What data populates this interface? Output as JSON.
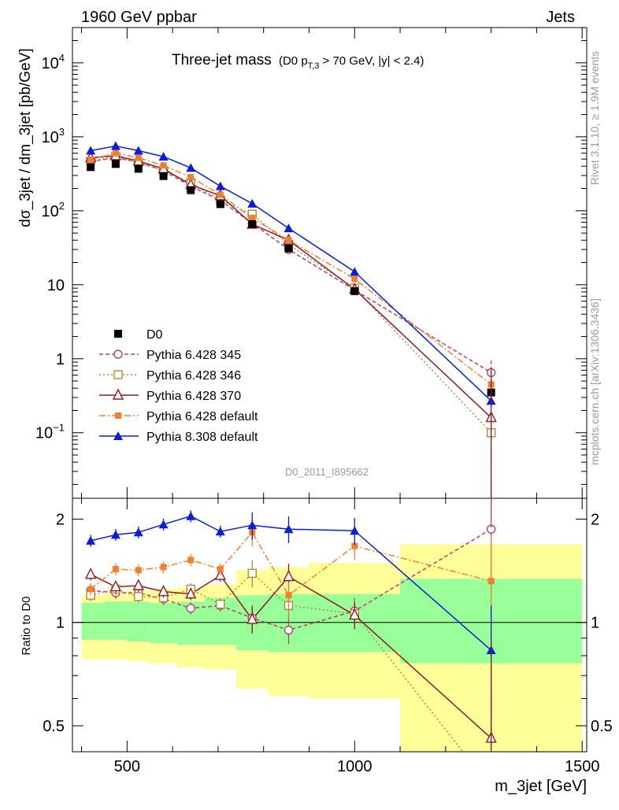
{
  "header": {
    "left": "1960 GeV ppbar",
    "right": "Jets"
  },
  "side_labels": {
    "rivet": "Rivet 3.1.10, ≥ 1.9M events",
    "mcplots": "mcplots.cern.ch [arXiv:1306.3436]"
  },
  "chart_data": {
    "type": "line",
    "title": "Three-jet mass",
    "title_cut": "(D0 p_T,3 > 70 GeV, |y| < 2.4)",
    "analysis_id": "D0_2011_I895662",
    "xlabel": "m_3jet [GeV]",
    "ylabel": "dσ_3jet / dm_3jet [pb/GeV]",
    "ratio_ylabel": "Ratio to D0",
    "xlim": [
      380,
      1510
    ],
    "ylim": [
      0.013,
      30000
    ],
    "yscale": "log",
    "ratio_ylim": [
      0.42,
      2.3
    ],
    "ratio_yscale": "log",
    "x_ticks": [
      "500",
      "1000",
      "1500"
    ],
    "y_ticks": [
      "10^-1",
      "1",
      "10",
      "10^2",
      "10^3",
      "10^4"
    ],
    "ratio_ticks": [
      "0.5",
      "1",
      "2"
    ],
    "legend_position": "bottom-left",
    "x": [
      420,
      475,
      525,
      580,
      640,
      705,
      775,
      855,
      1000,
      1300
    ],
    "bin_edges": [
      400,
      450,
      500,
      550,
      610,
      670,
      740,
      810,
      900,
      1100,
      1500
    ],
    "band_inner": [
      [
        0.89,
        1.14
      ],
      [
        0.89,
        1.15
      ],
      [
        0.88,
        1.15
      ],
      [
        0.87,
        1.14
      ],
      [
        0.86,
        1.15
      ],
      [
        0.86,
        1.18
      ],
      [
        0.83,
        1.2
      ],
      [
        0.82,
        1.21
      ],
      [
        0.82,
        1.21
      ],
      [
        0.76,
        1.34
      ]
    ],
    "band_outer": [
      [
        0.78,
        1.2
      ],
      [
        0.78,
        1.22
      ],
      [
        0.77,
        1.24
      ],
      [
        0.76,
        1.25
      ],
      [
        0.74,
        1.26
      ],
      [
        0.73,
        1.29
      ],
      [
        0.64,
        1.42
      ],
      [
        0.61,
        1.45
      ],
      [
        0.6,
        1.49
      ],
      [
        0.42,
        1.69
      ]
    ],
    "data": {
      "name": "D0",
      "values": [
        390,
        430,
        370,
        295,
        190,
        123,
        66,
        31,
        8.2,
        0.35
      ]
    },
    "series": [
      {
        "name": "Pythia 6.428 345",
        "color": "#b2455f",
        "values": [
          465,
          520,
          455,
          350,
          215,
          138,
          68,
          30,
          8.5,
          0.65
        ],
        "ratio": [
          1.24,
          1.22,
          1.22,
          1.17,
          1.1,
          1.12,
          1.03,
          0.95,
          1.08,
          1.87
        ]
      },
      {
        "name": "Pythia 6.428 346",
        "color": "#b5873b",
        "values": [
          470,
          540,
          445,
          350,
          240,
          140,
          90,
          35,
          9.0,
          0.1
        ],
        "ratio": [
          1.2,
          1.25,
          1.19,
          1.18,
          1.25,
          1.13,
          1.39,
          1.12,
          1.06,
          0.33
        ]
      },
      {
        "name": "Pythia 6.428 370",
        "color": "#8b1c24",
        "values": [
          520,
          555,
          470,
          370,
          225,
          160,
          66,
          40,
          8.7,
          0.16
        ],
        "ratio": [
          1.38,
          1.27,
          1.28,
          1.23,
          1.21,
          1.37,
          1.02,
          1.36,
          1.05,
          0.46
        ]
      },
      {
        "name": "Pythia 6.428 default",
        "color": "#f08030",
        "values": [
          490,
          600,
          520,
          410,
          285,
          165,
          80,
          40,
          12,
          0.45
        ],
        "ratio": [
          1.25,
          1.43,
          1.42,
          1.45,
          1.52,
          1.43,
          1.83,
          1.2,
          1.67,
          1.32
        ]
      },
      {
        "name": "Pythia 8.308 default",
        "color": "#0a1ed8",
        "values": [
          650,
          750,
          650,
          540,
          380,
          215,
          125,
          58,
          15,
          0.27
        ],
        "ratio": [
          1.73,
          1.8,
          1.83,
          1.93,
          2.04,
          1.84,
          1.92,
          1.87,
          1.85,
          0.83
        ]
      }
    ]
  }
}
